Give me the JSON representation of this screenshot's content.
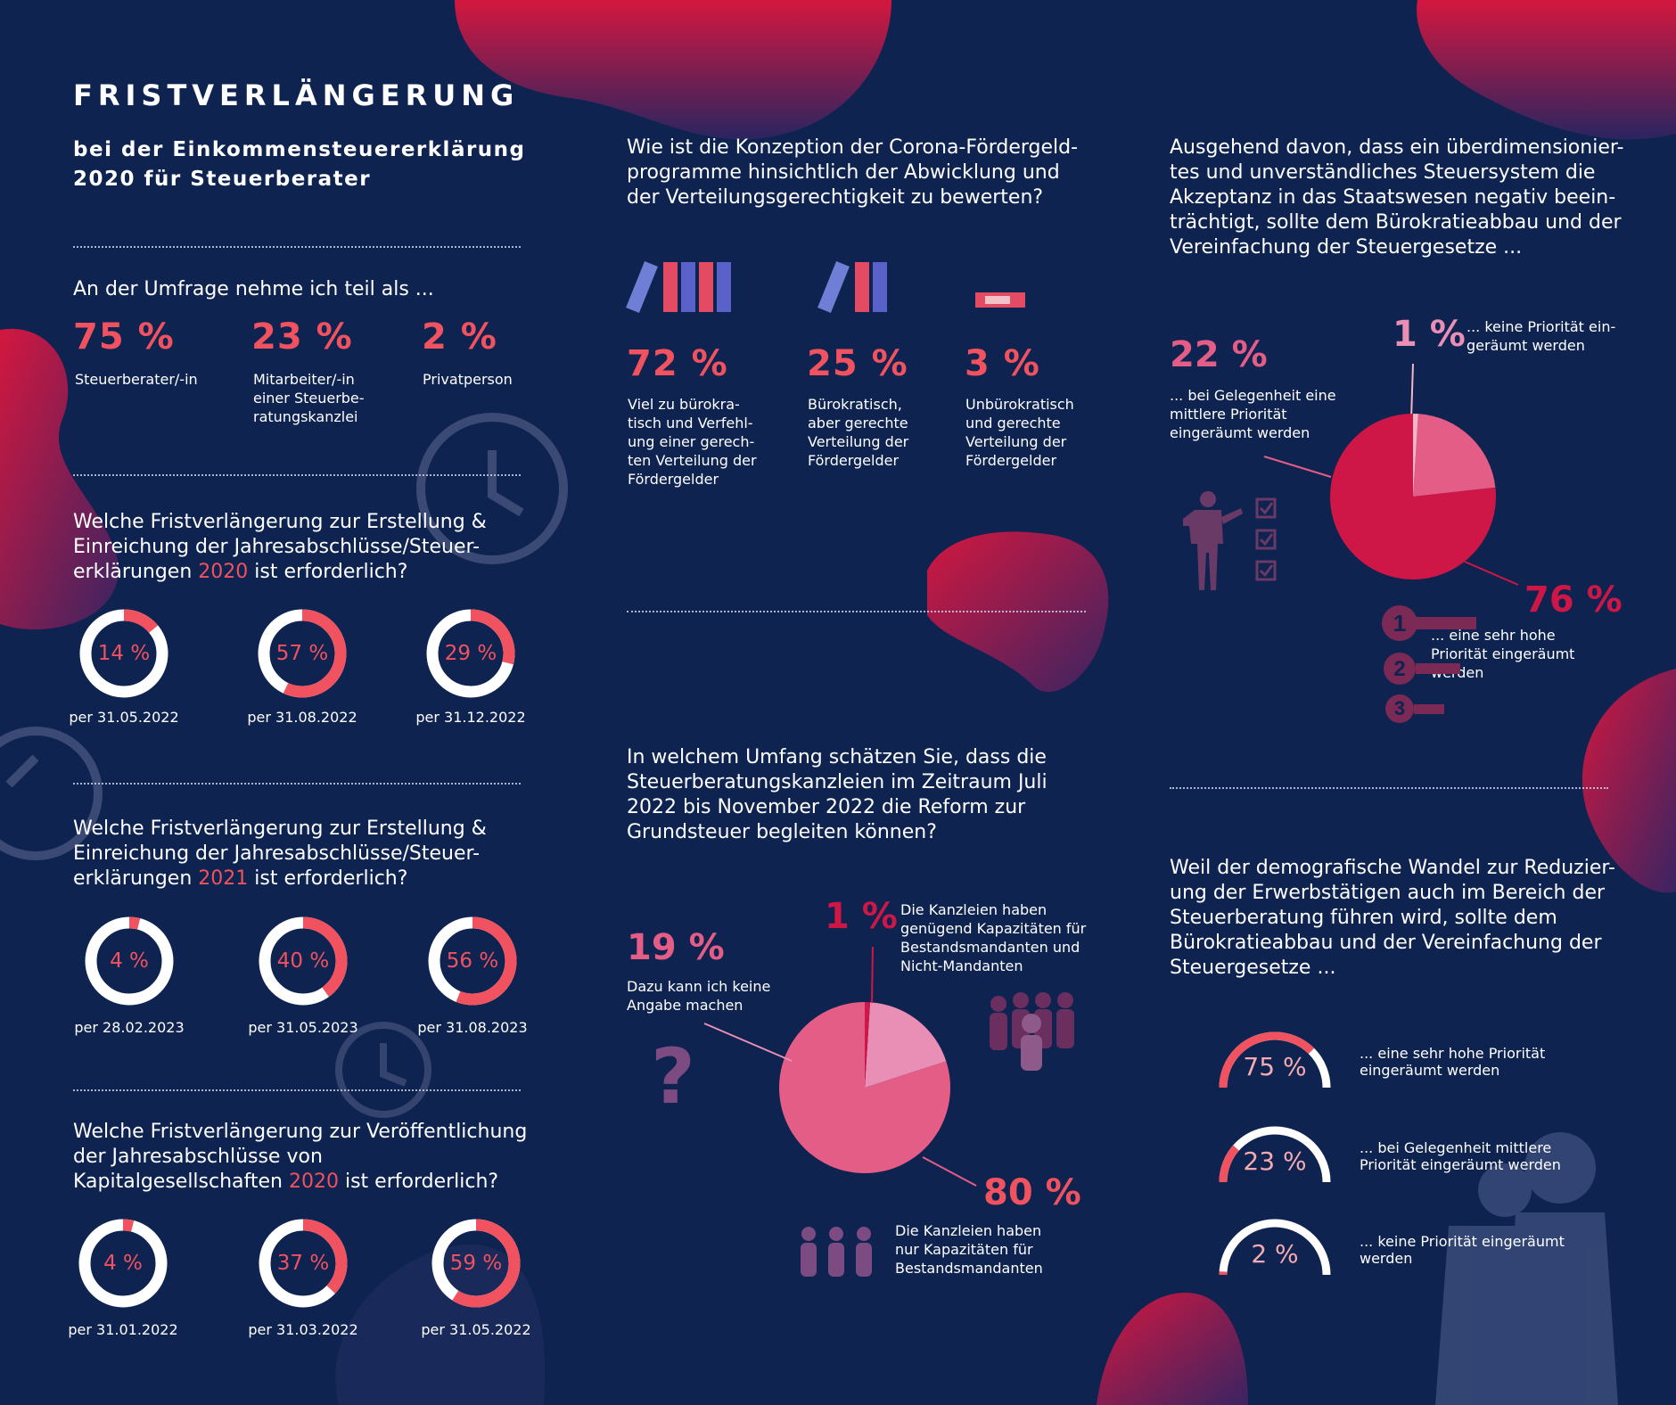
{
  "title": "FRISTVERLÄNGERUNG",
  "subtitle": "bei der Einkommensteuererklärung 2020 für Steuerberater",
  "colors": {
    "background": "#0e2350",
    "accent": "#f0525f",
    "crimson": "#ce1746",
    "pink": "#e45d86",
    "light_pink": "#e98fb6",
    "ring_track": "#ffffff"
  },
  "participants": {
    "question": "An der Umfrage nehme ich teil als ...",
    "items": [
      {
        "value": "75 %",
        "label": "Steuerberater/-in"
      },
      {
        "value": "23 %",
        "label": "Mitarbeiter/-in einer Steuerbe- ratungskanzlei"
      },
      {
        "value": "2 %",
        "label": "Privatperson"
      }
    ]
  },
  "deadline_2020": {
    "q_before": "Welche Fristverlängerung zur Erstellung  & Einreichung der Jahresabschlüsse/Steuer- erklärungen ",
    "q_year": "2020",
    "q_after": " ist erforderlich?"
  },
  "deadline_2021": {
    "q_before": "Welche Fristverlängerung zur Erstellung  & Einreichung der Jahresabschlüsse/Steuer- erklärungen ",
    "q_year": "2021",
    "q_after": " ist erforderlich?"
  },
  "deadline_pub": {
    "q_before": "Welche Fristverlängerung zur Veröffentlichung der Jahresabschlüsse von Kapitalgesellschaften ",
    "q_year": "2020",
    "q_after": " ist erforderlich?"
  },
  "corona": {
    "question": "Wie ist die Konzeption der Corona-Fördergeld- programme hinsichtlich der Abwicklung und der Verteilungsgerechtigkeit zu bewerten?",
    "items": [
      {
        "value": "72 %",
        "label": "Viel zu bürokra- tisch und Verfehl- ung einer gerech- ten Verteilung der Fördergelder"
      },
      {
        "value": "25 %",
        "label": "Bürokratisch, aber gerechte Verteilung der Fördergelder"
      },
      {
        "value": "3 %",
        "label": "Unbürokratisch und gerechte Verteilung der Fördergelder"
      }
    ]
  },
  "grundsteuer": {
    "question": "In welchem Umfang schätzen Sie, dass die Steuerberatungskanzleien im Zeitraum Juli 2022 bis November 2022 die Reform zur Grundsteuer begleiten können?",
    "labels": [
      {
        "value": "19 %",
        "text": "Dazu kann ich keine Angabe machen"
      },
      {
        "value": "1 %",
        "text": "Die Kanzleien haben genügend Kapazitäten für Bestandsmandanten und Nicht-Mandanten"
      },
      {
        "value": "80 %",
        "text": "Die Kanzleien haben nur Kapazitäten für Bestandsmandanten"
      }
    ],
    "question_mark": "?"
  },
  "buerokratie": {
    "question": "Ausgehend davon, dass ein überdimensionier- tes und unverständliches Steuersystem die Akzeptanz in das Staatswesen negativ beein- trächtigt, sollte dem Bürokratieabbau und der Vereinfachung der Steuergesetze ...",
    "labels": [
      {
        "value": "22 %",
        "text": "... bei Gelegenheit eine mittlere Priorität eingeräumt werden"
      },
      {
        "value": "1 %",
        "text": "... keine Priorität ein- geräumt werden"
      },
      {
        "value": "76 %",
        "text": "... eine sehr hohe Priorität eingeräumt werden"
      }
    ],
    "rank_icons": [
      "1",
      "2",
      "3"
    ]
  },
  "demografie": {
    "question": "Weil der demografische Wandel zur Reduzier- ung der Erwerbstätigen auch im Bereich der Steuerberatung führen wird, sollte dem Bürokratieabbau und der Vereinfachung der Steuergesetze ..."
  },
  "chart_data": [
    {
      "type": "donut",
      "title": "Welche Fristverlängerung zur Erstellung & Einreichung der Jahresabschlüsse/Steuererklärungen 2020 ist erforderlich?",
      "categories": [
        "per 31.05.2022",
        "per 31.08.2022",
        "per 31.12.2022"
      ],
      "values": [
        14,
        57,
        29
      ],
      "value_labels": [
        "14 %",
        "57 %",
        "29 %"
      ]
    },
    {
      "type": "donut",
      "title": "Welche Fristverlängerung zur Erstellung & Einreichung der Jahresabschlüsse/Steuererklärungen 2021 ist erforderlich?",
      "categories": [
        "per 28.02.2023",
        "per 31.05.2023",
        "per 31.08.2023"
      ],
      "values": [
        4,
        40,
        56
      ],
      "value_labels": [
        "4 %",
        "40 %",
        "56 %"
      ]
    },
    {
      "type": "donut",
      "title": "Welche Fristverlängerung zur Veröffentlichung der Jahresabschlüsse von Kapitalgesellschaften 2020 ist erforderlich?",
      "categories": [
        "per 31.01.2022",
        "per 31.03.2022",
        "per 31.05.2022"
      ],
      "values": [
        4,
        37,
        59
      ],
      "value_labels": [
        "4 %",
        "37 %",
        "59 %"
      ]
    },
    {
      "type": "pie",
      "title": "In welchem Umfang schätzen Sie, dass die Steuerberatungskanzleien im Zeitraum Juli 2022 bis November 2022 die Reform zur Grundsteuer begleiten können?",
      "categories": [
        "Die Kanzleien haben nur Kapazitäten für Bestandsmandanten",
        "Dazu kann ich keine Angabe machen",
        "Die Kanzleien haben genügend Kapazitäten für Bestandsmandanten und Nicht-Mandanten"
      ],
      "values": [
        80,
        19,
        1
      ],
      "colors": [
        "#e45d86",
        "#e98fb6",
        "#ce1746"
      ]
    },
    {
      "type": "pie",
      "title": "Ausgehend davon, dass ein überdimensioniertes und unverständliches Steuersystem die Akzeptanz in das Staatswesen negativ beeinträchtigt, sollte dem Bürokratieabbau und der Vereinfachung der Steuergesetze ...",
      "categories": [
        "... eine sehr hohe Priorität eingeräumt werden",
        "... bei Gelegenheit eine mittlere Priorität eingeräumt werden",
        "... keine Priorität eingeräumt werden"
      ],
      "values": [
        76,
        22,
        1
      ],
      "colors": [
        "#ce1746",
        "#e45d86",
        "#f4b6c6"
      ]
    },
    {
      "type": "gauge",
      "title": "Weil der demografische Wandel zur Reduzierung der Erwerbstätigen auch im Bereich der Steuerberatung führen wird, sollte dem Bürokratieabbau und der Vereinfachung der Steuergesetze ...",
      "categories": [
        "... eine sehr hohe Priorität eingeräumt werden",
        "... bei Gelegenheit mittlere Priorität eingeräumt werden",
        "... keine Priorität eingeräumt werden"
      ],
      "values": [
        75,
        23,
        2
      ],
      "value_labels": [
        "75 %",
        "23 %",
        "2 %"
      ]
    }
  ]
}
